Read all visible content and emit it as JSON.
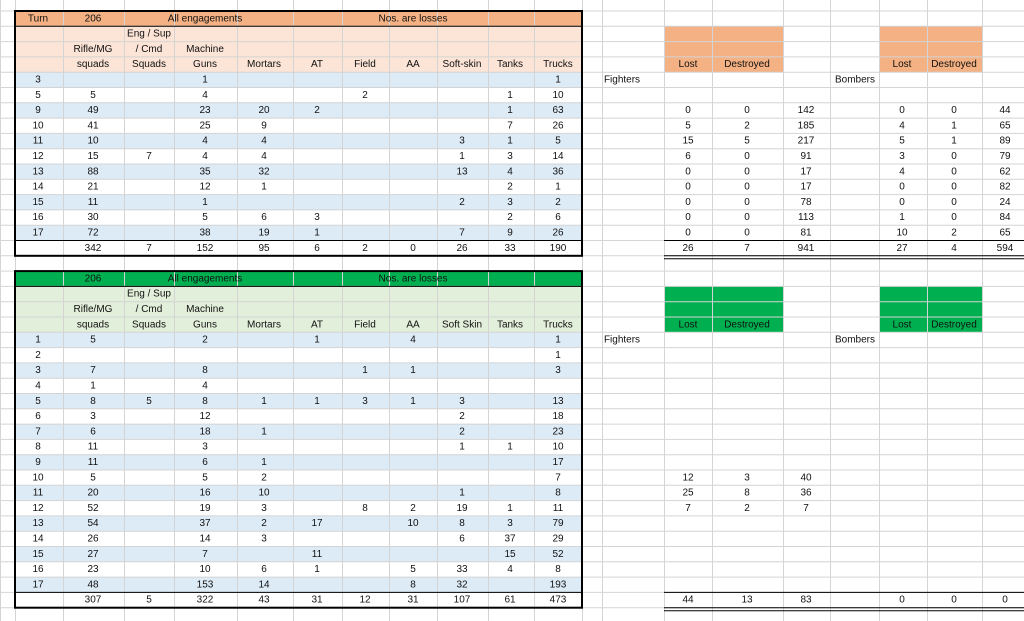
{
  "top": {
    "turn_label": "Turn",
    "game_id": "206",
    "scope": "All engagements",
    "note": "Nos. are losses",
    "headers": [
      [
        "Rifle/MG",
        "squads"
      ],
      [
        "Eng / Sup",
        "/ Cmd",
        "Squads"
      ],
      [
        "Machine",
        "Guns"
      ],
      [
        "Mortars"
      ],
      [
        "AT"
      ],
      [
        "Field"
      ],
      [
        "AA"
      ],
      [
        "Soft-skin"
      ],
      [
        "Tanks"
      ],
      [
        "Trucks"
      ]
    ],
    "rows": [
      [
        3,
        null,
        null,
        1,
        null,
        null,
        null,
        null,
        null,
        null,
        1
      ],
      [
        5,
        5,
        null,
        4,
        null,
        null,
        2,
        null,
        null,
        1,
        10
      ],
      [
        9,
        49,
        null,
        23,
        20,
        2,
        null,
        null,
        null,
        1,
        63
      ],
      [
        10,
        41,
        null,
        25,
        9,
        null,
        null,
        null,
        null,
        7,
        26
      ],
      [
        11,
        10,
        null,
        4,
        4,
        null,
        null,
        null,
        3,
        1,
        5
      ],
      [
        12,
        15,
        7,
        4,
        4,
        null,
        null,
        null,
        1,
        3,
        14
      ],
      [
        13,
        88,
        null,
        35,
        32,
        null,
        null,
        null,
        13,
        4,
        36
      ],
      [
        14,
        21,
        null,
        12,
        1,
        null,
        null,
        null,
        null,
        2,
        1
      ],
      [
        15,
        11,
        null,
        1,
        null,
        null,
        null,
        null,
        2,
        3,
        2
      ],
      [
        16,
        30,
        null,
        5,
        6,
        3,
        null,
        null,
        null,
        2,
        6
      ],
      [
        17,
        72,
        null,
        38,
        19,
        1,
        null,
        null,
        7,
        9,
        26
      ]
    ],
    "totals": [
      342,
      7,
      152,
      95,
      6,
      2,
      0,
      26,
      33,
      190
    ],
    "air": {
      "fighters_label": "Fighters",
      "bombers_label": "Bombers",
      "fighter_headers": [
        "Lost",
        "Destroyed"
      ],
      "bomber_headers": [
        "Lost",
        "Destroyed"
      ],
      "rows": [
        null,
        null,
        [
          0,
          0,
          142,
          0,
          0,
          44
        ],
        [
          5,
          2,
          185,
          4,
          1,
          65
        ],
        [
          15,
          5,
          217,
          5,
          1,
          89
        ],
        [
          6,
          0,
          91,
          3,
          0,
          79
        ],
        [
          0,
          0,
          17,
          4,
          0,
          62
        ],
        [
          0,
          0,
          17,
          0,
          0,
          82
        ],
        [
          0,
          0,
          78,
          0,
          0,
          24
        ],
        [
          0,
          0,
          113,
          1,
          0,
          84
        ],
        [
          0,
          0,
          81,
          10,
          2,
          65
        ]
      ],
      "totals": [
        26,
        7,
        941,
        27,
        4,
        594
      ]
    }
  },
  "bottom": {
    "game_id": "206",
    "scope": "All engagements",
    "note": "Nos. are losses",
    "headers": [
      [
        "Rifle/MG",
        "squads"
      ],
      [
        "Eng / Sup",
        "/ Cmd",
        "Squads"
      ],
      [
        "Machine",
        "Guns"
      ],
      [
        "Mortars"
      ],
      [
        "AT"
      ],
      [
        "Field"
      ],
      [
        "AA"
      ],
      [
        "Soft Skin"
      ],
      [
        "Tanks"
      ],
      [
        "Trucks"
      ]
    ],
    "rows": [
      [
        1,
        5,
        null,
        2,
        null,
        1,
        null,
        4,
        null,
        null,
        1
      ],
      [
        2,
        null,
        null,
        null,
        null,
        null,
        null,
        null,
        null,
        null,
        1
      ],
      [
        3,
        7,
        null,
        8,
        null,
        null,
        1,
        1,
        null,
        null,
        3
      ],
      [
        4,
        1,
        null,
        4,
        null,
        null,
        null,
        null,
        null,
        null,
        null
      ],
      [
        5,
        8,
        5,
        8,
        1,
        1,
        3,
        1,
        3,
        null,
        13
      ],
      [
        6,
        3,
        null,
        12,
        null,
        null,
        null,
        null,
        2,
        null,
        18
      ],
      [
        7,
        6,
        null,
        18,
        1,
        null,
        null,
        null,
        2,
        null,
        23
      ],
      [
        8,
        11,
        null,
        3,
        null,
        null,
        null,
        null,
        1,
        1,
        10
      ],
      [
        9,
        11,
        null,
        6,
        1,
        null,
        null,
        null,
        null,
        null,
        17
      ],
      [
        10,
        5,
        null,
        5,
        2,
        null,
        null,
        null,
        null,
        null,
        7
      ],
      [
        11,
        20,
        null,
        16,
        10,
        null,
        null,
        null,
        1,
        null,
        8
      ],
      [
        12,
        52,
        null,
        19,
        3,
        null,
        8,
        2,
        19,
        1,
        11
      ],
      [
        13,
        54,
        null,
        37,
        2,
        17,
        null,
        10,
        8,
        3,
        79
      ],
      [
        14,
        26,
        null,
        14,
        3,
        null,
        null,
        null,
        6,
        37,
        29
      ],
      [
        15,
        27,
        null,
        7,
        null,
        11,
        null,
        null,
        null,
        15,
        52
      ],
      [
        16,
        23,
        null,
        10,
        6,
        1,
        null,
        5,
        33,
        4,
        8
      ],
      [
        17,
        48,
        null,
        153,
        14,
        null,
        null,
        8,
        32,
        null,
        193
      ]
    ],
    "totals": [
      307,
      5,
      322,
      43,
      31,
      12,
      31,
      107,
      61,
      473
    ],
    "air": {
      "fighters_label": "Fighters",
      "bombers_label": "Bombers",
      "fighter_headers": [
        "Lost",
        "Destroyed"
      ],
      "bomber_headers": [
        "Lost",
        "Destroyed"
      ],
      "rows": [
        null,
        null,
        null,
        null,
        null,
        null,
        null,
        null,
        null,
        [
          12,
          3,
          40,
          null,
          null,
          null
        ],
        [
          25,
          8,
          36,
          null,
          null,
          null
        ],
        [
          7,
          2,
          7,
          null,
          null,
          null
        ],
        null,
        null,
        null,
        null,
        null
      ],
      "totals": [
        44,
        13,
        83,
        0,
        0,
        0
      ]
    }
  }
}
